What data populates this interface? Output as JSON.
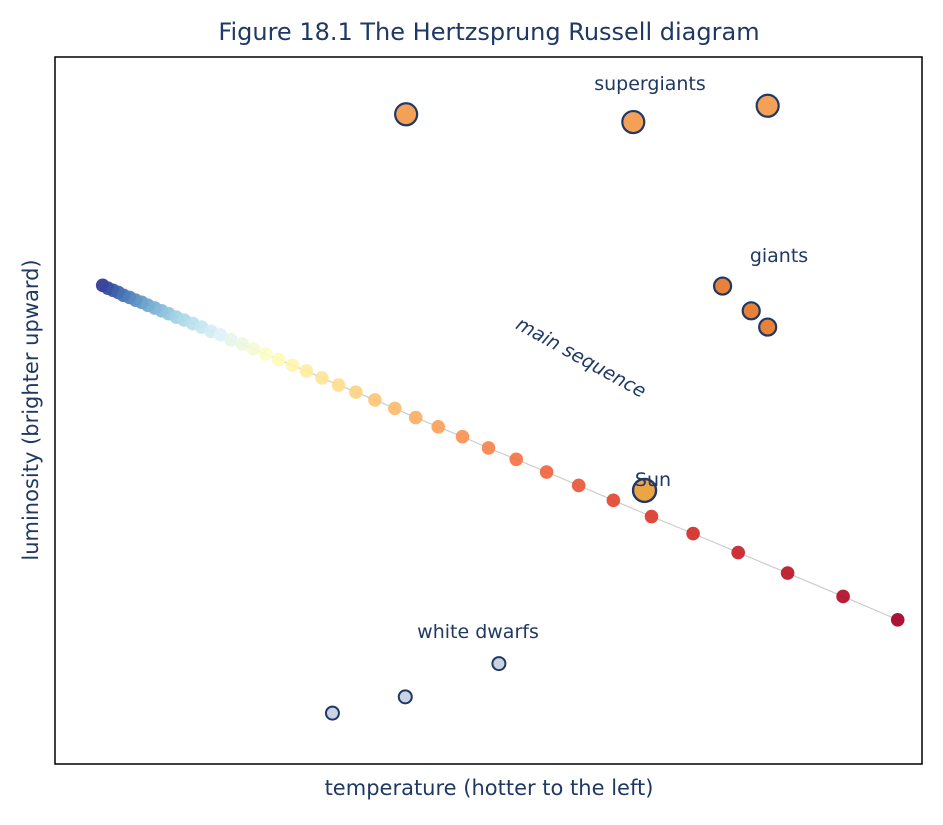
{
  "chart_data": {
    "type": "scatter",
    "title": "Figure 18.1  The Hertzsprung Russell diagram",
    "xlabel": "temperature (hotter to the left)",
    "ylabel": "luminosity (brighter upward)",
    "x_direction": "reversed (hotter to the left)",
    "xlim": [
      0,
      100
    ],
    "ylim": [
      0,
      100
    ],
    "grid": false,
    "ticks": false,
    "colors": {
      "text": "#1f3864",
      "marker_edge": "#1f3864",
      "supergiant": "#f4a056",
      "giant": "#e8813a",
      "sun": "#eba545",
      "white_dwarf": "#c9d3e3",
      "trend_line": "#cccccc",
      "colormap": [
        "#313695",
        "#4575b4",
        "#74add1",
        "#abd9e9",
        "#e0f3f8",
        "#ffffbf",
        "#fee090",
        "#fdae61",
        "#f46d43",
        "#d73027",
        "#a50026"
      ]
    },
    "main_sequence": {
      "x": [
        94.5,
        93.9,
        93.3,
        92.7,
        92.1,
        91.4,
        90.7,
        90.0,
        89.3,
        88.5,
        87.7,
        86.9,
        86.0,
        85.1,
        84.1,
        83.1,
        82.0,
        80.9,
        79.7,
        78.4,
        77.1,
        75.7,
        74.2,
        72.6,
        71.0,
        69.2,
        67.3,
        65.3,
        63.1,
        60.8,
        58.4,
        55.8,
        53.0,
        50.0,
        46.8,
        43.3,
        39.6,
        35.6,
        31.2,
        26.4,
        21.2,
        15.5,
        9.1,
        2.8
      ],
      "y": [
        67.7,
        67.3,
        67.0,
        66.7,
        66.3,
        66.0,
        65.6,
        65.3,
        64.9,
        64.5,
        64.1,
        63.7,
        63.2,
        62.8,
        62.3,
        61.8,
        61.2,
        60.7,
        60.0,
        59.4,
        58.7,
        58.0,
        57.2,
        56.4,
        55.6,
        54.6,
        53.6,
        52.6,
        51.5,
        50.3,
        49.0,
        47.7,
        46.3,
        44.7,
        43.1,
        41.3,
        39.4,
        37.3,
        35.0,
        32.6,
        29.9,
        27.0,
        23.7,
        20.4
      ]
    },
    "supergiants": {
      "x": [
        59.5,
        33.3,
        17.8
      ],
      "y": [
        91.9,
        90.8,
        93.1
      ]
    },
    "giants": {
      "x": [
        23.0,
        19.7,
        17.8
      ],
      "y": [
        67.6,
        64.1,
        61.8
      ]
    },
    "sun": {
      "x": 32.0,
      "y": 38.7
    },
    "white_dwarfs": {
      "x": [
        48.8,
        59.6,
        68.0
      ],
      "y": [
        14.2,
        9.5,
        7.2
      ]
    },
    "annotations": {
      "supergiants": "supergiants",
      "giants": "giants",
      "main_sequence": "main sequence",
      "sun": "Sun",
      "white_dwarfs": "white dwarfs"
    }
  }
}
